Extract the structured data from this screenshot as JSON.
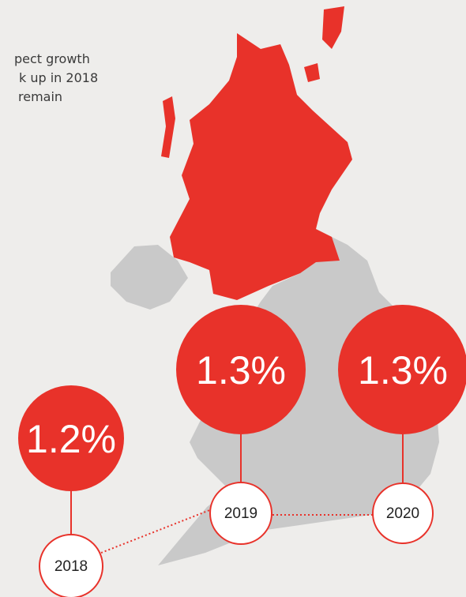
{
  "text_lines": [
    "pect growth",
    "k up in 2018",
    "remain"
  ],
  "forecasts": [
    {
      "value": "1.2%",
      "year": "2018"
    },
    {
      "value": "1.3%",
      "year": "2019"
    },
    {
      "value": "1.3%",
      "year": "2020"
    }
  ]
}
